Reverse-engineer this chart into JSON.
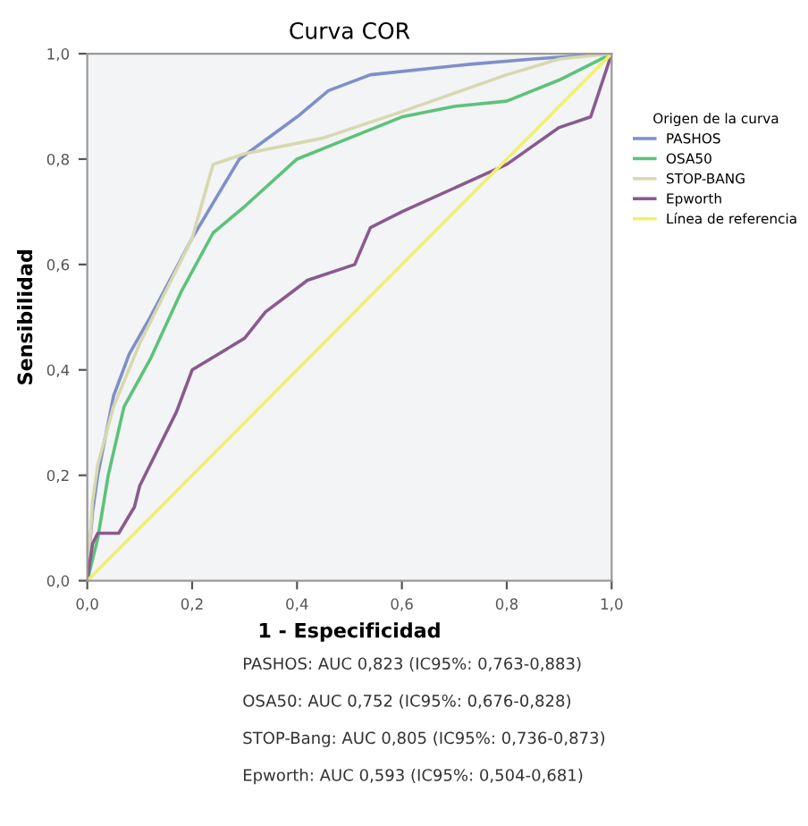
{
  "chart_data": {
    "type": "line",
    "title": "Curva COR",
    "xlabel": "1 - Especificidad",
    "ylabel": "Sensibilidad",
    "legend_title": "Origen de la curva",
    "legend": "right",
    "xlim": [
      0,
      1
    ],
    "ylim": [
      0,
      1
    ],
    "xticks": [
      {
        "value": 0,
        "label": "0,0"
      },
      {
        "value": 0.2,
        "label": "0,2"
      },
      {
        "value": 0.4,
        "label": "0,4"
      },
      {
        "value": 0.6,
        "label": "0,6"
      },
      {
        "value": 0.8,
        "label": "0,8"
      },
      {
        "value": 1,
        "label": "1,0"
      }
    ],
    "yticks": [
      {
        "value": 0,
        "label": "0,0"
      },
      {
        "value": 0.2,
        "label": "0,2"
      },
      {
        "value": 0.4,
        "label": "0,4"
      },
      {
        "value": 0.6,
        "label": "0,6"
      },
      {
        "value": 0.8,
        "label": "0,8"
      },
      {
        "value": 1,
        "label": "1,0"
      }
    ],
    "grid": false,
    "marker": "none",
    "line_style": "solid",
    "series": [
      {
        "name": "PASHOS",
        "color": "#7f8fc9",
        "x": [
          0,
          0.005,
          0.01,
          0.02,
          0.05,
          0.08,
          0.12,
          0.2,
          0.26,
          0.29,
          0.4,
          0.46,
          0.54,
          0.73,
          0.85,
          1
        ],
        "values": [
          0,
          0.07,
          0.13,
          0.2,
          0.35,
          0.43,
          0.5,
          0.65,
          0.75,
          0.8,
          0.88,
          0.93,
          0.96,
          0.98,
          0.99,
          1
        ]
      },
      {
        "name": "OSA50",
        "color": "#5dc27a",
        "x": [
          0,
          0.02,
          0.04,
          0.07,
          0.12,
          0.18,
          0.24,
          0.3,
          0.4,
          0.5,
          0.6,
          0.7,
          0.8,
          0.9,
          1
        ],
        "values": [
          0,
          0.08,
          0.2,
          0.33,
          0.42,
          0.55,
          0.66,
          0.71,
          0.8,
          0.84,
          0.88,
          0.9,
          0.91,
          0.95,
          1
        ]
      },
      {
        "name": "STOP-BANG",
        "color": "#d8d8b0",
        "x": [
          0,
          0.01,
          0.02,
          0.05,
          0.1,
          0.2,
          0.24,
          0.3,
          0.45,
          0.6,
          0.8,
          0.9,
          1
        ],
        "values": [
          0,
          0.15,
          0.22,
          0.33,
          0.45,
          0.65,
          0.79,
          0.81,
          0.84,
          0.89,
          0.96,
          0.99,
          1
        ]
      },
      {
        "name": "Epworth",
        "color": "#8a5a8f",
        "x": [
          0,
          0.01,
          0.02,
          0.06,
          0.09,
          0.1,
          0.17,
          0.2,
          0.3,
          0.34,
          0.38,
          0.42,
          0.51,
          0.54,
          0.6,
          0.8,
          0.9,
          0.96,
          1
        ],
        "values": [
          0,
          0.07,
          0.09,
          0.09,
          0.14,
          0.18,
          0.32,
          0.4,
          0.46,
          0.51,
          0.54,
          0.57,
          0.6,
          0.67,
          0.7,
          0.79,
          0.86,
          0.88,
          1
        ]
      },
      {
        "name": "Línea de referencia",
        "color": "#f0f070",
        "x": [
          0,
          1
        ],
        "values": [
          0,
          1
        ]
      }
    ],
    "annotations": [
      "PASHOS: AUC 0,823 (IC95%: 0,763-0,883)",
      "OSA50: AUC 0,752 (IC95%: 0,676-0,828)",
      "STOP-Bang: AUC 0,805 (IC95%: 0,736-0,873)",
      "Epworth: AUC 0,593 (IC95%: 0,504-0,681)"
    ]
  }
}
